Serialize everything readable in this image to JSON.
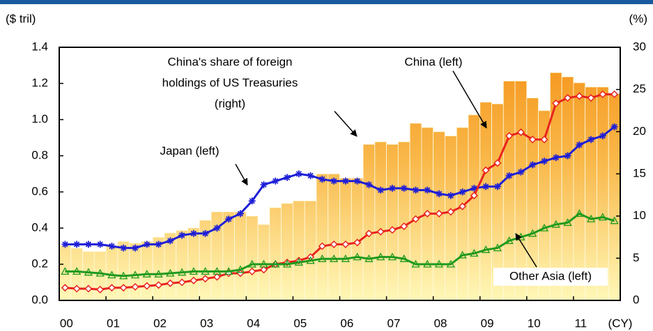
{
  "chart_data": {
    "type": "bar-line",
    "y_label": "($ tril)",
    "y2_label": "(%)",
    "x_label": "(CY)",
    "categories": [
      "00",
      null,
      null,
      null,
      "01",
      null,
      null,
      null,
      "02",
      null,
      null,
      null,
      "03",
      null,
      null,
      null,
      "04",
      null,
      null,
      null,
      "05",
      null,
      null,
      null,
      "06",
      null,
      null,
      null,
      "07",
      null,
      null,
      null,
      "08",
      null,
      null,
      null,
      "09",
      null,
      null,
      null,
      "10",
      null,
      null,
      null,
      "11",
      null,
      null,
      null
    ],
    "ylim": [
      0,
      1.4
    ],
    "yticks": [
      {
        "value": 0,
        "label": "0.0"
      },
      0.2,
      0.4,
      0.6,
      0.8,
      {
        "value": 1,
        "label": "1.0"
      },
      1.2,
      1.4
    ],
    "y2lim": [
      0,
      30
    ],
    "y2ticks": [
      0,
      5,
      10,
      15,
      20,
      25,
      30
    ],
    "series": [
      {
        "name": "China's share of foreign holdings of US Treasuries (right)",
        "kind": "bar",
        "axis": "y2",
        "color": "#f7941d",
        "values": [
          6.5,
          6.2,
          5.8,
          5.8,
          6.5,
          7.0,
          6.8,
          7.0,
          7.5,
          8.0,
          8.3,
          8.6,
          9.5,
          10.5,
          10.5,
          10.5,
          10.0,
          9.0,
          11.0,
          11.5,
          11.8,
          11.8,
          15.0,
          15.0,
          14.5,
          14.5,
          18.5,
          18.8,
          18.5,
          18.8,
          21.0,
          20.5,
          20.0,
          19.5,
          20.5,
          22.0,
          23.5,
          23.3,
          26.0,
          26.0,
          24.0,
          22.5,
          27.0,
          26.5,
          25.8,
          25.3,
          25.3,
          24.5
        ]
      },
      {
        "name": "Japan (left)",
        "kind": "line",
        "marker": "star",
        "color": "#1f1fd6",
        "values": [
          0.31,
          0.31,
          0.31,
          0.31,
          0.3,
          0.29,
          0.29,
          0.31,
          0.31,
          0.33,
          0.36,
          0.37,
          0.37,
          0.4,
          0.45,
          0.48,
          0.55,
          0.64,
          0.66,
          0.68,
          0.7,
          0.69,
          0.67,
          0.66,
          0.66,
          0.66,
          0.64,
          0.61,
          0.62,
          0.62,
          0.61,
          0.61,
          0.59,
          0.58,
          0.6,
          0.62,
          0.63,
          0.63,
          0.69,
          0.71,
          0.75,
          0.77,
          0.79,
          0.8,
          0.86,
          0.89,
          0.91,
          0.96
        ]
      },
      {
        "name": "China (left)",
        "kind": "line",
        "marker": "diamond",
        "color": "#e8231f",
        "values": [
          0.07,
          0.065,
          0.065,
          0.06,
          0.07,
          0.07,
          0.075,
          0.08,
          0.085,
          0.095,
          0.1,
          0.11,
          0.12,
          0.13,
          0.15,
          0.15,
          0.16,
          0.17,
          0.2,
          0.21,
          0.22,
          0.24,
          0.3,
          0.31,
          0.31,
          0.32,
          0.37,
          0.38,
          0.39,
          0.41,
          0.45,
          0.48,
          0.48,
          0.49,
          0.52,
          0.58,
          0.72,
          0.76,
          0.91,
          0.93,
          0.89,
          0.89,
          1.09,
          1.12,
          1.13,
          1.12,
          1.14,
          1.14
        ]
      },
      {
        "name": "Other Asia (left)",
        "kind": "line",
        "marker": "triangle",
        "color": "#1e9a1e",
        "values": [
          0.16,
          0.16,
          0.155,
          0.15,
          0.14,
          0.135,
          0.14,
          0.145,
          0.145,
          0.15,
          0.155,
          0.16,
          0.16,
          0.16,
          0.16,
          0.17,
          0.2,
          0.2,
          0.2,
          0.2,
          0.21,
          0.22,
          0.23,
          0.23,
          0.23,
          0.24,
          0.23,
          0.24,
          0.24,
          0.23,
          0.2,
          0.2,
          0.2,
          0.2,
          0.25,
          0.26,
          0.28,
          0.29,
          0.33,
          0.35,
          0.37,
          0.4,
          0.42,
          0.43,
          0.48,
          0.45,
          0.46,
          0.44
        ]
      }
    ],
    "annotations": [
      {
        "lines": [
          "China's share of foreign",
          "holdings of US Treasuries",
          "(right)"
        ]
      },
      {
        "lines": [
          "Japan (left)"
        ]
      },
      {
        "lines": [
          "China (left)"
        ]
      },
      {
        "lines": [
          "Other Asia (left)"
        ]
      }
    ]
  }
}
